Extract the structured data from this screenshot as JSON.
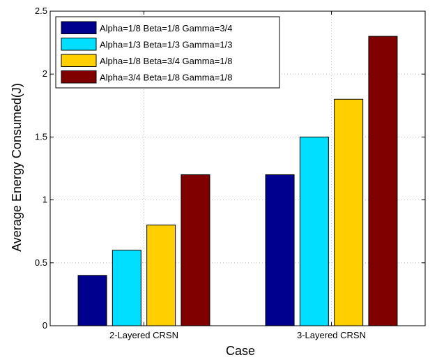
{
  "chart_data": {
    "type": "bar",
    "title": "",
    "xlabel": "Case",
    "ylabel": "Average Energy Consumed(J)",
    "categories": [
      "2-Layered CRSN",
      "3-Layered CRSN"
    ],
    "series": [
      {
        "name": "Alpha=1/8 Beta=1/8 Gamma=3/4",
        "values": [
          0.4,
          1.2
        ],
        "color": "#00008F"
      },
      {
        "name": "Alpha=1/3 Beta=1/3 Gamma=1/3",
        "values": [
          0.6,
          1.5
        ],
        "color": "#00DFFF"
      },
      {
        "name": "Alpha=1/8 Beta=3/4 Gamma=1/8",
        "values": [
          0.8,
          1.8
        ],
        "color": "#FFCF00"
      },
      {
        "name": "Alpha=3/4 Beta=1/8 Gamma=1/8",
        "values": [
          1.2,
          2.3
        ],
        "color": "#800000"
      }
    ],
    "ylim": [
      0,
      2.5
    ],
    "yticks": [
      "0",
      "0.5",
      "1",
      "1.5",
      "2",
      "2.5"
    ],
    "grid": true,
    "legend_position": "top-left"
  }
}
